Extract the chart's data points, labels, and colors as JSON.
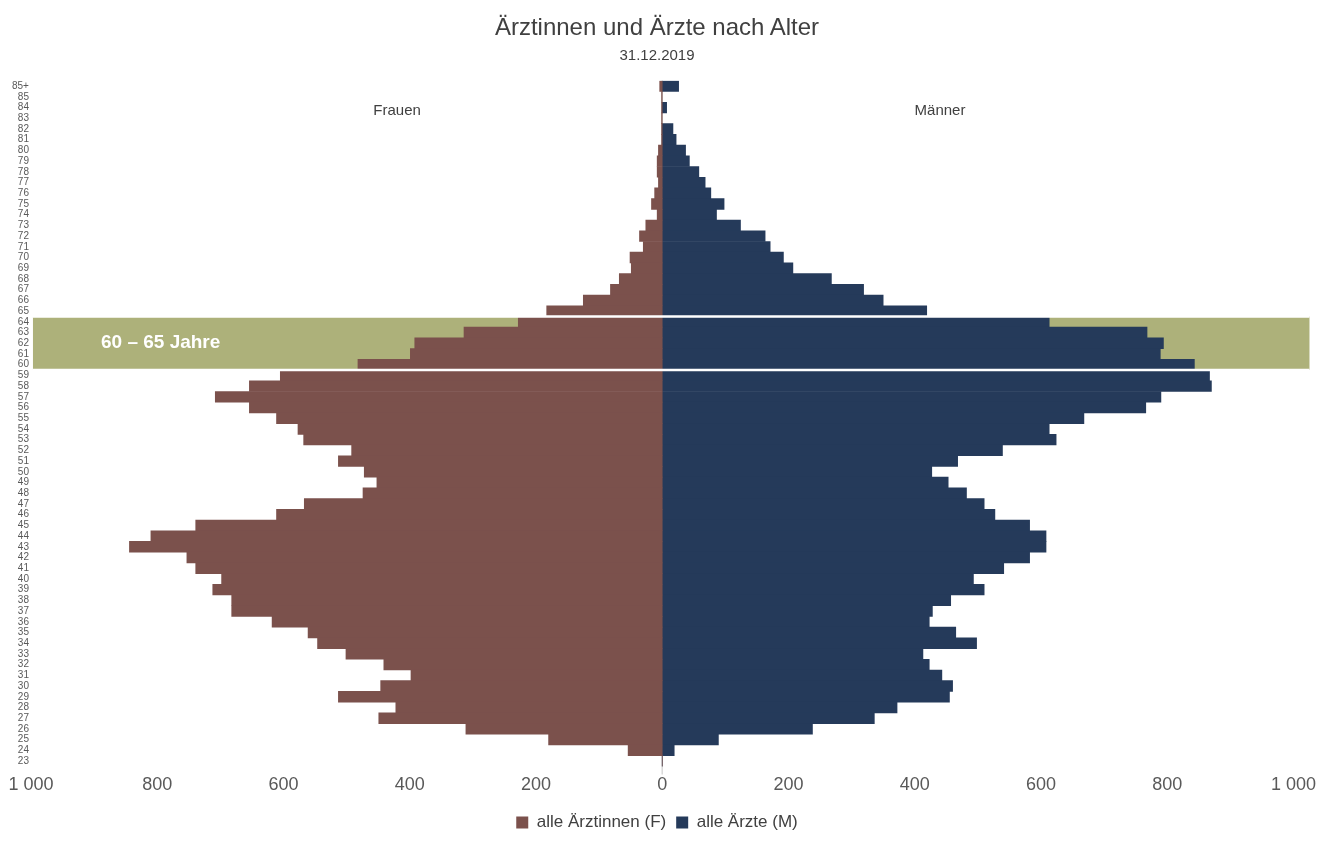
{
  "chart_data": {
    "type": "bar",
    "orientation": "horizontal",
    "stacked": true,
    "title": "Ärztinnen und Ärzte nach Alter",
    "subtitle": "31.12.2019",
    "categories": [
      "85+",
      "85",
      "84",
      "83",
      "82",
      "81",
      "80",
      "79",
      "78",
      "77",
      "76",
      "75",
      "74",
      "73",
      "72",
      "71",
      "70",
      "69",
      "68",
      "67",
      "66",
      "65",
      "64",
      "63",
      "62",
      "61",
      "60",
      "59",
      "58",
      "57",
      "56",
      "55",
      "54",
      "53",
      "52",
      "51",
      "50",
      "49",
      "48",
      "47",
      "46",
      "45",
      "44",
      "43",
      "42",
      "41",
      "40",
      "39",
      "38",
      "37",
      "36",
      "35",
      "34",
      "33",
      "32",
      "31",
      "30",
      "29",
      "28",
      "27",
      "26",
      "25",
      "24",
      "23"
    ],
    "series": [
      {
        "name": "alle Ärztinnen (F)",
        "color": "#7b514c",
        "values": [
          -4,
          -1,
          -1,
          -1,
          -1,
          -1,
          -6,
          -8,
          -8,
          -6,
          -12,
          -17,
          -8,
          -26,
          -36,
          -30,
          -51,
          -49,
          -68,
          -82,
          -125,
          -183,
          -228,
          -314,
          -392,
          -399,
          -482,
          -605,
          -654,
          -708,
          -654,
          -611,
          -577,
          -568,
          -492,
          -513,
          -472,
          -452,
          -474,
          -567,
          -611,
          -739,
          -810,
          -844,
          -753,
          -739,
          -698,
          -712,
          -682,
          -682,
          -618,
          -561,
          -546,
          -501,
          -441,
          -398,
          -446,
          -513,
          -422,
          -449,
          -311,
          -180,
          -54,
          0
        ]
      },
      {
        "name": "alle Ärzte (M)",
        "color": "#253a5a",
        "values": [
          26,
          null,
          7,
          null,
          17,
          22,
          37,
          43,
          58,
          68,
          77,
          98,
          86,
          124,
          163,
          171,
          192,
          207,
          268,
          319,
          350,
          419,
          613,
          768,
          794,
          789,
          843,
          867,
          870,
          790,
          766,
          668,
          613,
          624,
          539,
          468,
          427,
          453,
          482,
          510,
          527,
          582,
          608,
          608,
          582,
          541,
          493,
          510,
          457,
          428,
          423,
          465,
          498,
          413,
          423,
          443,
          460,
          455,
          372,
          336,
          238,
          89,
          19,
          0
        ]
      }
    ],
    "xlim": [
      -1000,
      1000
    ],
    "xticks": [
      {
        "value": -1000,
        "label": "1 000"
      },
      {
        "value": -800,
        "label": "800"
      },
      {
        "value": -600,
        "label": "600"
      },
      {
        "value": -400,
        "label": "400"
      },
      {
        "value": -200,
        "label": "200"
      },
      0,
      200,
      400,
      600,
      800,
      {
        "value": 1000,
        "label": "1 000"
      }
    ],
    "bands": [
      {
        "axis": "y",
        "from": "64",
        "to": "60",
        "label": "60 – 65 Jahre",
        "color": "#adb17a"
      }
    ],
    "annotations": [
      "Frauen",
      "Männer"
    ],
    "grid": false,
    "legend": "bottom"
  }
}
